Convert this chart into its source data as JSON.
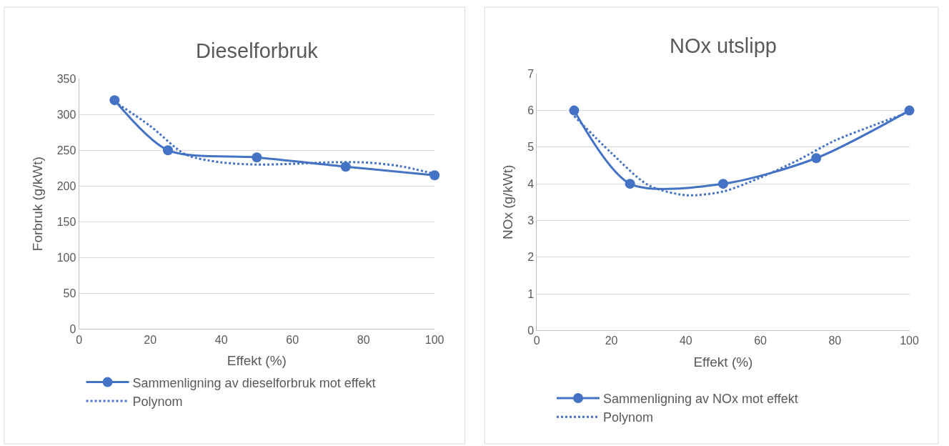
{
  "chart_data": [
    {
      "type": "line",
      "title": "Dieselforbruk",
      "xlabel": "Effekt (%)",
      "ylabel": "Forbruk (g/kWt)",
      "xlim": [
        0,
        100
      ],
      "xticks": [
        0,
        20,
        40,
        60,
        80,
        100
      ],
      "ylim": [
        0,
        350
      ],
      "yticks": [
        0,
        50,
        100,
        150,
        200,
        250,
        300,
        350
      ],
      "grid": "y",
      "legend": "bottom",
      "series": [
        {
          "name": "Sammenligning av dieselforbruk mot effekt",
          "color": "#4472c4",
          "x": [
            10,
            25,
            50,
            75,
            100
          ],
          "values": [
            320,
            250,
            240,
            227,
            215
          ],
          "marker": "circle",
          "line_style": "solid"
        },
        {
          "name": "Polynom",
          "color": "#4472c4",
          "x": [
            10,
            20,
            30,
            40,
            50,
            60,
            70,
            80,
            90,
            100
          ],
          "values": [
            318,
            284,
            244,
            233,
            230,
            231,
            233,
            233,
            228,
            217
          ],
          "marker": "none",
          "line_style": "dotted"
        }
      ]
    },
    {
      "type": "line",
      "title": "NOx utslipp",
      "xlabel": "Effekt (%)",
      "ylabel": "NOx (g/kWt)",
      "xlim": [
        0,
        100
      ],
      "xticks": [
        0,
        20,
        40,
        60,
        80,
        100
      ],
      "ylim": [
        0,
        7
      ],
      "yticks": [
        0,
        1,
        2,
        3,
        4,
        5,
        6,
        7
      ],
      "grid": "y",
      "legend": "bottom",
      "series": [
        {
          "name": "Sammenligning av NOx mot effekt",
          "color": "#4472c4",
          "x": [
            10,
            25,
            50,
            75,
            100
          ],
          "values": [
            6,
            4,
            4,
            4.7,
            6
          ],
          "marker": "circle",
          "line_style": "solid"
        },
        {
          "name": "Polynom",
          "color": "#4472c4",
          "x": [
            10,
            20,
            30,
            40,
            50,
            60,
            70,
            80,
            90,
            100
          ],
          "values": [
            5.85,
            4.84,
            3.96,
            3.69,
            3.79,
            4.17,
            4.64,
            5.18,
            5.58,
            5.96
          ],
          "marker": "none",
          "line_style": "dotted"
        }
      ]
    }
  ]
}
